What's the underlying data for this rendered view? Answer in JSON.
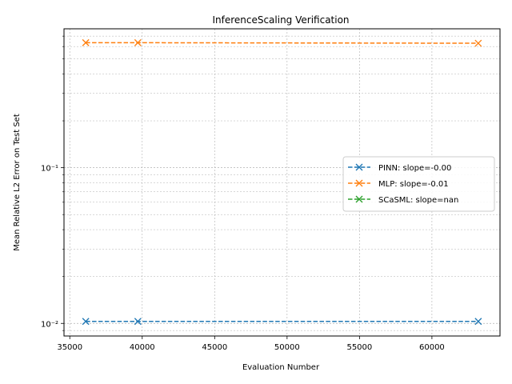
{
  "chart_data": {
    "type": "line",
    "title": "InferenceScaling Verification",
    "xlabel": "Evaluation Number",
    "ylabel": "Mean Relative L2 Error on Test Set",
    "xlim": [
      34600,
      64700
    ],
    "ylim": [
      0.0083,
      0.78
    ],
    "yscale": "log",
    "grid": true,
    "legend_position": "center-right",
    "x_ticks": [
      35000,
      40000,
      45000,
      50000,
      55000,
      60000
    ],
    "x_tick_labels": [
      "35000",
      "40000",
      "45000",
      "50000",
      "55000",
      "60000"
    ],
    "y_major_ticks": [
      0.01,
      0.1
    ],
    "y_tick_labels": [
      "10⁻²",
      "10⁻¹"
    ],
    "series": [
      {
        "name": "PINN: slope=-0.00",
        "color": "#1f77b4",
        "marker": "x",
        "x": [
          36100,
          39700,
          63200
        ],
        "y": [
          0.0103,
          0.0103,
          0.0103
        ]
      },
      {
        "name": "MLP: slope=-0.01",
        "color": "#ff7f0e",
        "marker": "x",
        "x": [
          36100,
          39700,
          63200
        ],
        "y": [
          0.635,
          0.635,
          0.63
        ]
      },
      {
        "name": "SCaSML: slope=nan",
        "color": "#2ca02c",
        "marker": "x",
        "x": [],
        "y": []
      }
    ]
  }
}
